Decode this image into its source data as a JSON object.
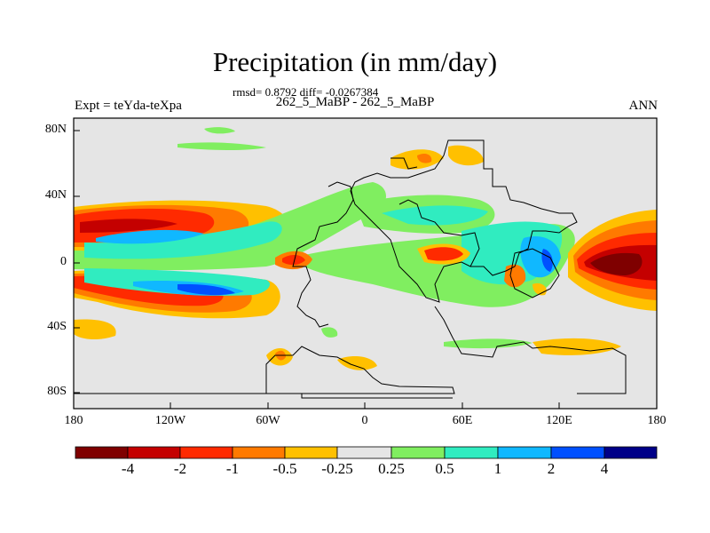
{
  "figure": {
    "title": "Precipitation (in mm/day)",
    "stats": "rmsd= 0.8792 diff= -0.0267384",
    "runs": "262_5_MaBP - 262_5_MaBP",
    "experiment": "Expt = teYda-teXpa",
    "season": "ANN"
  },
  "axes": {
    "lat_ticks": [
      "80N",
      "40N",
      "0",
      "40S",
      "80S"
    ],
    "lon_ticks": [
      "180",
      "120W",
      "60W",
      "0",
      "60E",
      "120E",
      "180"
    ]
  },
  "colorbar": {
    "labels": [
      "-4",
      "-2",
      "-1",
      "-0.5",
      "-0.25",
      "0.25",
      "0.5",
      "1",
      "2",
      "4"
    ],
    "colors": [
      "#7f0000",
      "#c40000",
      "#ff2a00",
      "#ff7a00",
      "#ffc000",
      "#e5e5e5",
      "#80ee60",
      "#30ecc0",
      "#10b8ff",
      "#0050ff",
      "#000088"
    ]
  },
  "colors": {
    "background": "#e5e5e5",
    "dark_red": "#7f0000",
    "red": "#c40000",
    "red_orange": "#ff2a00",
    "orange": "#ff7a00",
    "yellow_orange": "#ffc000",
    "green": "#80ee60",
    "aqua": "#30ecc0",
    "sky_blue": "#10b8ff",
    "blue": "#0050ff"
  }
}
